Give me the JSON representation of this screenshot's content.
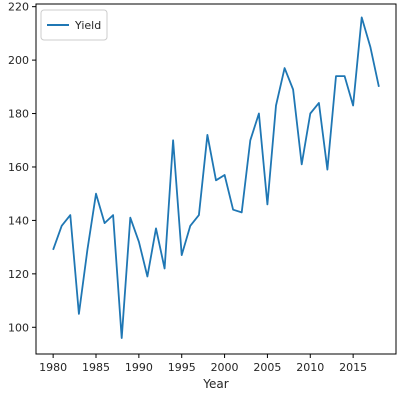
{
  "chart_data": {
    "type": "line",
    "title": "",
    "xlabel": "Year",
    "ylabel": "",
    "xlim": [
      1978,
      2020
    ],
    "ylim": [
      90,
      221
    ],
    "x_ticks": [
      1980,
      1985,
      1990,
      1995,
      2000,
      2005,
      2010,
      2015
    ],
    "y_ticks": [
      100,
      120,
      140,
      160,
      180,
      200,
      220
    ],
    "grid": false,
    "legend": "top-left",
    "series": [
      {
        "name": "Yield",
        "color": "#1f77b4",
        "x": [
          1980,
          1981,
          1982,
          1983,
          1984,
          1985,
          1986,
          1987,
          1988,
          1989,
          1990,
          1991,
          1992,
          1993,
          1994,
          1995,
          1996,
          1997,
          1998,
          1999,
          2000,
          2001,
          2002,
          2003,
          2004,
          2005,
          2006,
          2007,
          2008,
          2009,
          2010,
          2011,
          2012,
          2013,
          2014,
          2015,
          2016,
          2017,
          2018
        ],
        "values": [
          129,
          138,
          142,
          105,
          129,
          150,
          139,
          142,
          96,
          141,
          132,
          119,
          137,
          122,
          170,
          127,
          138,
          142,
          172,
          155,
          157,
          144,
          143,
          170,
          180,
          146,
          183,
          197,
          189,
          161,
          180,
          184,
          159,
          194,
          194,
          183,
          216,
          205,
          190
        ]
      }
    ]
  }
}
